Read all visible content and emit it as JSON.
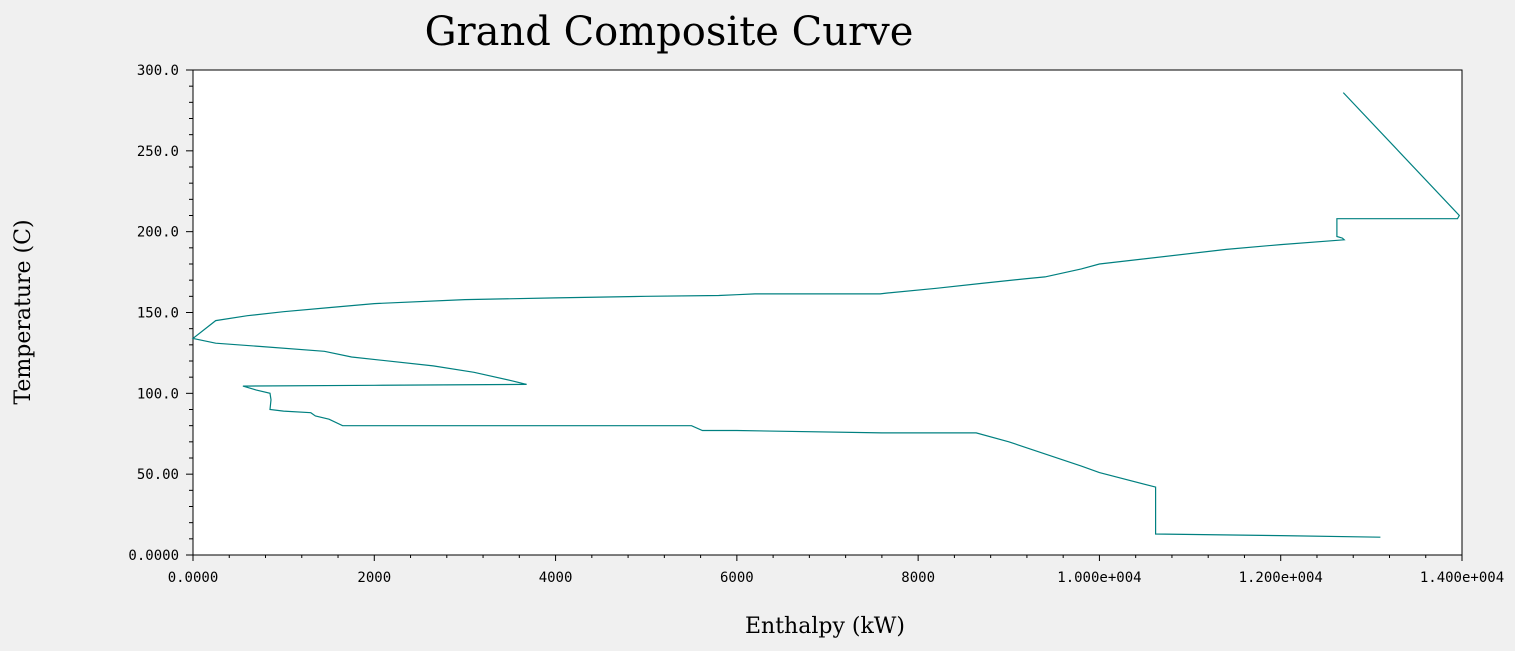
{
  "chart_data": {
    "type": "line",
    "title": "Grand Composite Curve",
    "xlabel": "Enthalpy (kW)",
    "ylabel": "Temperature (C)",
    "xlim": [
      0,
      14000
    ],
    "ylim": [
      0,
      300
    ],
    "grid": false,
    "legend": "none",
    "x_ticks": [
      {
        "value": 0,
        "label": "0.0000"
      },
      {
        "value": 2000,
        "label": "2000"
      },
      {
        "value": 4000,
        "label": "4000"
      },
      {
        "value": 6000,
        "label": "6000"
      },
      {
        "value": 8000,
        "label": "8000"
      },
      {
        "value": 10000,
        "label": "1.000e+004"
      },
      {
        "value": 12000,
        "label": "1.200e+004"
      },
      {
        "value": 14000,
        "label": "1.400e+004"
      }
    ],
    "y_ticks": [
      {
        "value": 0,
        "label": "0.0000"
      },
      {
        "value": 50,
        "label": "50.00"
      },
      {
        "value": 100,
        "label": "100.0"
      },
      {
        "value": 150,
        "label": "150.0"
      },
      {
        "value": 200,
        "label": "200.0"
      },
      {
        "value": 250,
        "label": "250.0"
      },
      {
        "value": 300,
        "label": "300.0"
      }
    ],
    "minor_ticks_per_major": 5,
    "series": [
      {
        "color": "#008080",
        "points": [
          [
            12690,
            286
          ],
          [
            13970,
            210
          ],
          [
            13950,
            208
          ],
          [
            12620,
            208
          ],
          [
            12620,
            197
          ],
          [
            12680,
            196
          ],
          [
            12700,
            195
          ],
          [
            12000,
            192
          ],
          [
            11400,
            189
          ],
          [
            10000,
            180
          ],
          [
            9800,
            177
          ],
          [
            9400,
            172
          ],
          [
            9200,
            171
          ],
          [
            8700,
            168
          ],
          [
            8200,
            165
          ],
          [
            7650,
            162
          ],
          [
            7580,
            161.5
          ],
          [
            6200,
            161.5
          ],
          [
            6000,
            161
          ],
          [
            5800,
            160.5
          ],
          [
            5000,
            160
          ],
          [
            4000,
            159
          ],
          [
            3000,
            158
          ],
          [
            2000,
            155.5
          ],
          [
            1500,
            153
          ],
          [
            1000,
            150.5
          ],
          [
            600,
            148
          ],
          [
            250,
            145
          ],
          [
            0,
            134
          ],
          [
            250,
            131
          ],
          [
            750,
            129
          ],
          [
            1450,
            126
          ],
          [
            1750,
            122.5
          ],
          [
            2650,
            117
          ],
          [
            3100,
            113
          ],
          [
            3500,
            108
          ],
          [
            3680,
            105.5
          ],
          [
            2000,
            105
          ],
          [
            550,
            104.5
          ],
          [
            700,
            102
          ],
          [
            850,
            100
          ],
          [
            860,
            96
          ],
          [
            850,
            90
          ],
          [
            1000,
            89
          ],
          [
            1300,
            88
          ],
          [
            1350,
            86
          ],
          [
            1500,
            84
          ],
          [
            1650,
            80
          ],
          [
            5500,
            80
          ],
          [
            5620,
            77
          ],
          [
            6000,
            77
          ],
          [
            7600,
            75.5
          ],
          [
            8640,
            75.5
          ],
          [
            9000,
            70
          ],
          [
            9800,
            55
          ],
          [
            10000,
            51
          ],
          [
            10620,
            42
          ],
          [
            10620,
            13
          ],
          [
            12000,
            12
          ],
          [
            13100,
            11
          ]
        ]
      }
    ]
  }
}
